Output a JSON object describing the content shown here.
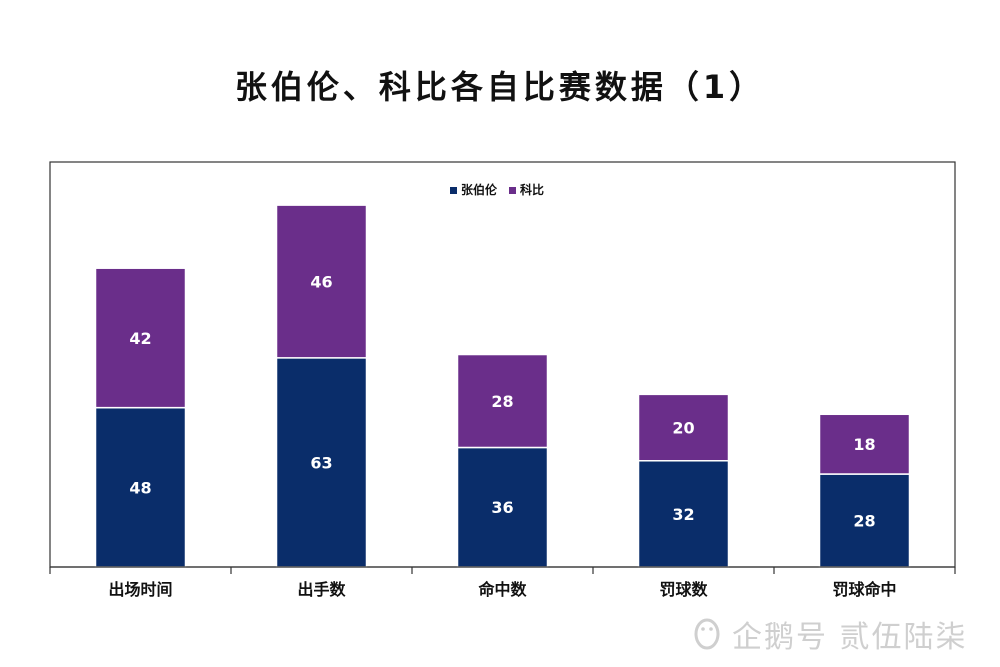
{
  "chart_data": {
    "type": "bar",
    "stacked": true,
    "title": "张伯伦、科比各自比赛数据（1）",
    "categories": [
      "出场时间",
      "出手数",
      "命中数",
      "罚球数",
      "罚球命中"
    ],
    "series": [
      {
        "name": "张伯伦",
        "values": [
          48,
          63,
          36,
          32,
          28
        ],
        "color": "#0a2d6a"
      },
      {
        "name": "科比",
        "values": [
          42,
          46,
          28,
          20,
          18
        ],
        "color": "#6a2e8a"
      }
    ],
    "ylim": [
      0,
      115
    ],
    "legend_position": "top-center",
    "grid": false,
    "data_labels": true,
    "data_label_color": "#ffffff"
  },
  "watermark": "企鹅号 贰伍陆柒"
}
